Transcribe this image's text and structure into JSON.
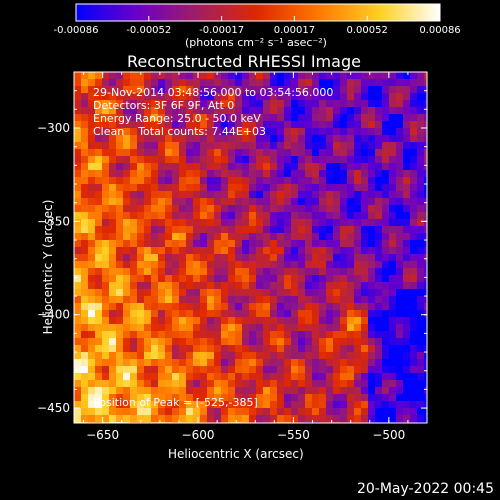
{
  "colors": {
    "background": "#000000",
    "text": "#ffffff",
    "colormap": [
      "#0000ff",
      "#6a00c8",
      "#a01e64",
      "#e02800",
      "#ff7800",
      "#ffd020",
      "#ffffff"
    ]
  },
  "colorbar": {
    "min": -0.00086,
    "max": 0.00086,
    "tick_labels": [
      "-0.00086",
      "-0.00052",
      "-0.00017",
      "0.00017",
      "0.00052",
      "0.00086"
    ],
    "unit_label": "(photons cm⁻² s⁻¹ asec⁻²)"
  },
  "chart_data": {
    "type": "heatmap",
    "title": "Reconstructed RHESSI Image",
    "xlabel": "Heliocentric X (arcsec)",
    "ylabel": "Heliocentric Y (arcsec)",
    "xlim": [
      -665,
      -480
    ],
    "ylim": [
      -458,
      -270
    ],
    "x_ticks": [
      -650,
      -600,
      -550,
      -500
    ],
    "y_ticks": [
      -450,
      -400,
      -350,
      -300
    ],
    "annotations": [
      "29-Nov-2014 03:48:56.000 to 03:54:56.000",
      "Detectors: 3F 6F 9F, Att 0",
      "Energy Range: 25.0 - 50.0 keV",
      "Clean    Total counts: 7.44E+03"
    ],
    "peak_label": "Position of Peak = [-525,-385]",
    "peak_position": [
      -525,
      -385
    ],
    "grid": false
  },
  "footer": {
    "timestamp": "20-May-2022 00:45"
  }
}
